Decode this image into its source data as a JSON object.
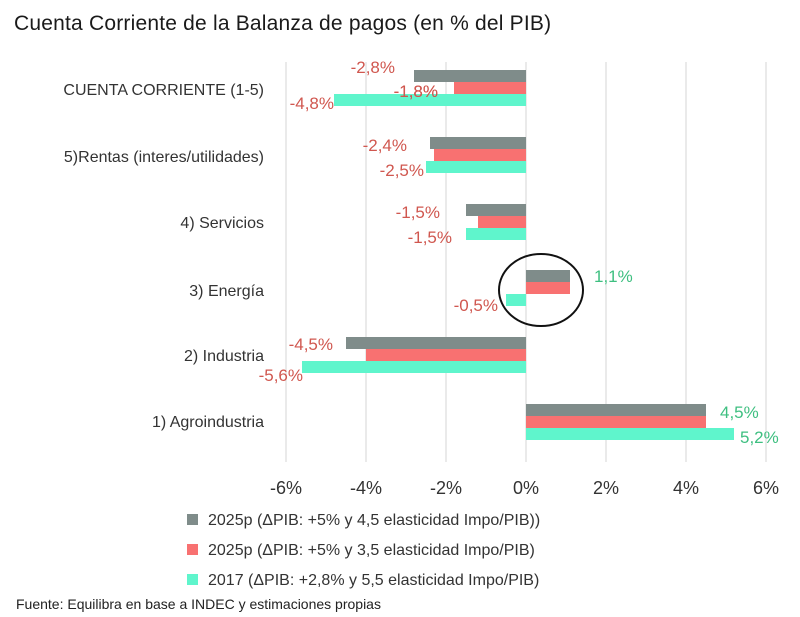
{
  "chart_data": {
    "type": "bar",
    "orientation": "horizontal",
    "title": "Cuenta Corriente de la Balanza de pagos (en % del PIB)",
    "categories": [
      "CUENTA CORRIENTE (1-5)",
      "5)Rentas (interes/utilidades)",
      "4) Servicios",
      "3) Energía",
      "2) Industria",
      "1) Agroindustria"
    ],
    "series": [
      {
        "name": "2025p (ΔPIB: +5% y 4,5 elasticidad Impo/PIB))",
        "color": "#7f8c8a",
        "values": [
          -2.8,
          -2.4,
          -1.5,
          1.1,
          -4.5,
          4.5
        ],
        "labels": [
          "-2,8%",
          "-2,4%",
          "-1,5%",
          "1,1%",
          "-4,5%",
          "4,5%"
        ]
      },
      {
        "name": "2025p (ΔPIB: +5% y 3,5 elasticidad Impo/PIB)",
        "color": "#f87171",
        "values": [
          -1.8,
          -2.3,
          -1.2,
          1.1,
          -4.0,
          4.5
        ],
        "labels": [
          "-1,8%",
          null,
          null,
          null,
          null,
          null
        ]
      },
      {
        "name": "2017 (ΔPIB: +2,8% y 5,5 elasticidad Impo/PIB)",
        "color": "#5ff5cc",
        "values": [
          -4.8,
          -2.5,
          -1.5,
          -0.5,
          -5.6,
          5.2
        ],
        "labels": [
          "-4,8%",
          "-2,5%",
          "-1,5%",
          "-0,5%",
          "-5,6%",
          "5,2%"
        ]
      }
    ],
    "x_ticks": [
      "-6%",
      "-4%",
      "-2%",
      "0%",
      "2%",
      "4%",
      "6%"
    ],
    "xlim": [
      -6,
      6
    ],
    "grid": true,
    "legend_position": "bottom",
    "annotation": "circle around 3) Energía",
    "label_color_negative": "#d0574f",
    "label_color_positive": "#3ebf80"
  },
  "footnote": "Fuente: Equilibra en base a INDEC y estimaciones propias"
}
